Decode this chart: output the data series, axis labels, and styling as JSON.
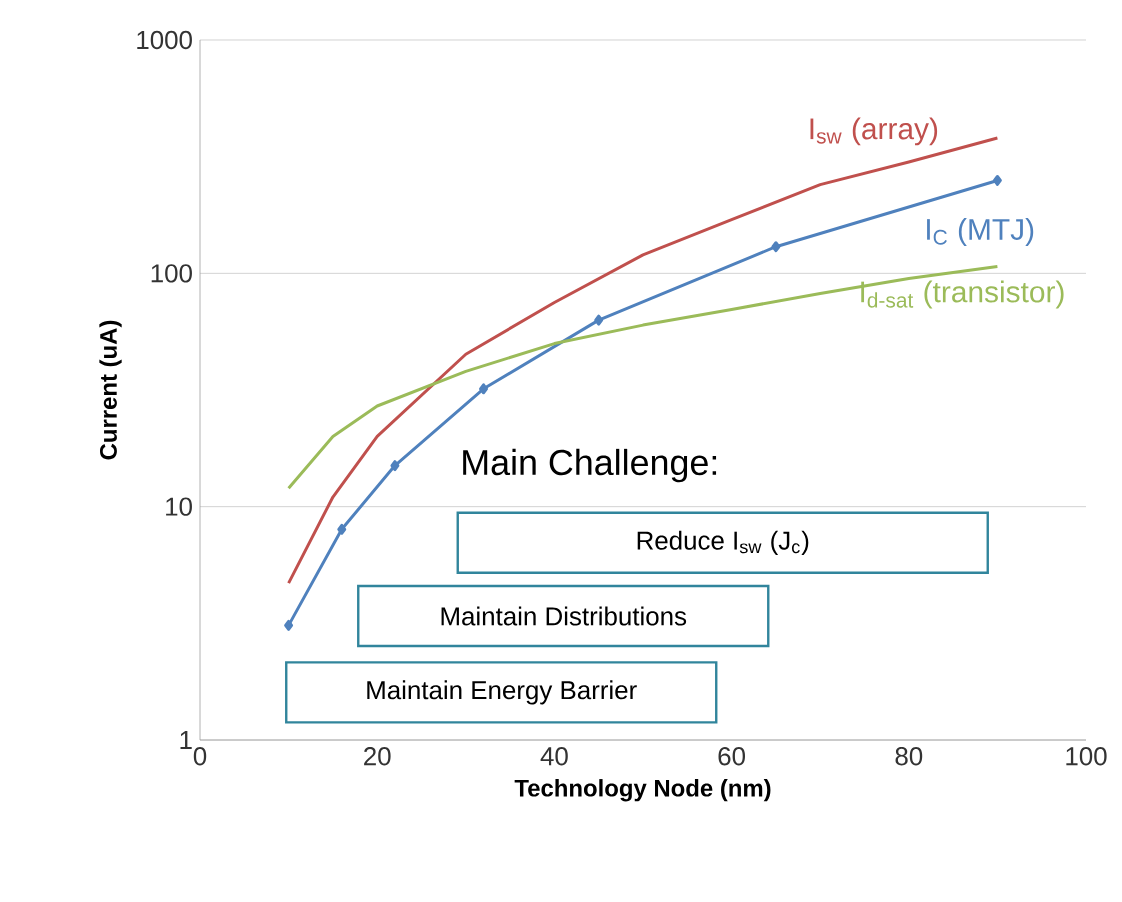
{
  "chart_data": {
    "type": "line",
    "xlabel": "Technology Node (nm)",
    "ylabel": "Current (uA)",
    "log": "y",
    "grid": "y",
    "legend": false,
    "xlim": [
      0,
      100
    ],
    "xticks": [
      0,
      20,
      40,
      60,
      80,
      100
    ],
    "ylim": [
      1,
      1000
    ],
    "yticks": [
      1,
      10,
      100,
      1000
    ],
    "series": [
      {
        "name": "I$_{sw}$ (array)",
        "color": "#c0504d",
        "marker": "none",
        "x": [
          10,
          15,
          20,
          30,
          40,
          50,
          60,
          70,
          80,
          90
        ],
        "values": [
          4.7,
          11,
          20,
          45,
          75,
          120,
          170,
          240,
          300,
          380
        ]
      },
      {
        "name": "I$_{C}$ (MTJ)",
        "color": "#4f81bd",
        "marker": "diamond",
        "x": [
          10,
          16,
          22,
          32,
          45,
          65,
          90
        ],
        "values": [
          3.1,
          8,
          15,
          32,
          63,
          130,
          250
        ]
      },
      {
        "name": "I$_{d-sat}$ (transistor)",
        "color": "#9bbb59",
        "marker": "none",
        "x": [
          10,
          15,
          20,
          30,
          40,
          50,
          60,
          70,
          80,
          90
        ],
        "values": [
          12,
          20,
          27,
          38,
          50,
          60,
          70,
          82,
          95,
          107
        ]
      }
    ],
    "annotations": [
      "Main Challenge:",
      "Reduce I$_{sw}$ (J$_{c}$)",
      "Maintain Distributions",
      "Maintain Energy Barrier"
    ]
  }
}
